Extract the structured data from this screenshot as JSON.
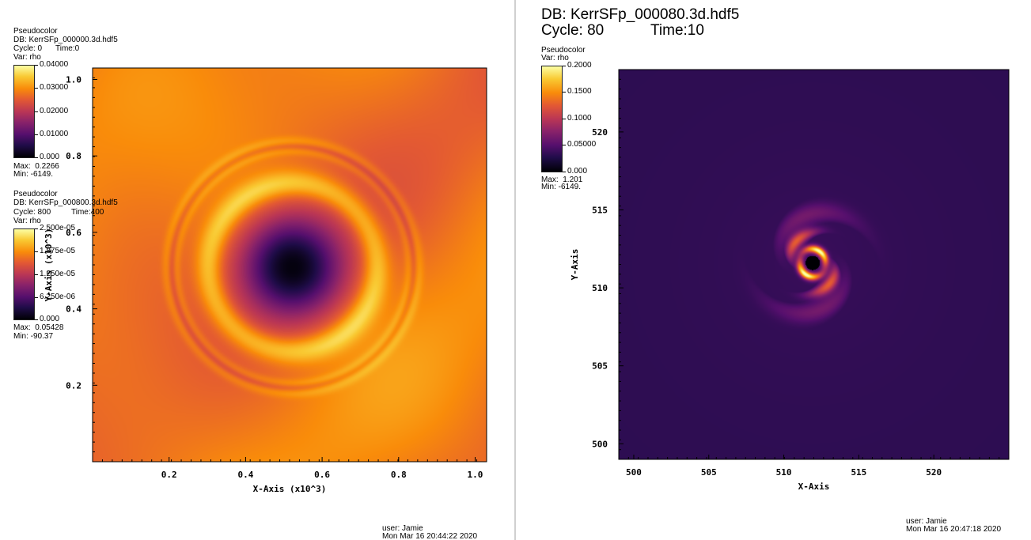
{
  "windows": [
    {
      "id": "left",
      "legends": [
        {
          "plot": "Pseudocolor",
          "db": "DB: KerrSFp_000000.3d.hdf5",
          "cycle": "Cycle: 0",
          "time": "Time:0",
          "var": "Var: rho",
          "ticks": [
            "0.04000",
            "0.03000",
            "0.02000",
            "0.01000",
            "0.000"
          ],
          "max": "Max:  0.2266",
          "min": "Min: -6149."
        },
        {
          "plot": "Pseudocolor",
          "db": "DB: KerrSFp_000800.3d.hdf5",
          "cycle": "Cycle: 800",
          "time": "Time:400",
          "var": "Var: rho",
          "ticks": [
            "2.500e-05",
            "1.875e-05",
            "1.250e-05",
            "6.250e-06",
            "0.000"
          ],
          "max": "Max:  0.05428",
          "min": "Min: -90.37"
        }
      ],
      "user": "user: Jamie",
      "date": "Mon Mar 16 20:44:22 2020"
    },
    {
      "id": "right",
      "header_db": "DB: KerrSFp_000080.3d.hdf5",
      "header_cycle": "Cycle: 80",
      "header_time": "Time:10",
      "legends": [
        {
          "plot": "Pseudocolor",
          "var": "Var: rho",
          "ticks": [
            "0.2000",
            "0.1500",
            "0.1000",
            "0.05000",
            "0.000"
          ],
          "max": "Max:  1.201",
          "min": "Min: -6149."
        }
      ],
      "user": "user: Jamie",
      "date": "Mon Mar 16 20:47:18 2020"
    }
  ],
  "chart_data": [
    {
      "type": "heatmap",
      "variable": "rho",
      "colormap": "inferno",
      "xlabel": "X-Axis (x10^3)",
      "ylabel": "Y-Axis (x10^3)",
      "xlim": [
        0.0,
        1.03
      ],
      "ylim": [
        0.0,
        1.03
      ],
      "x_ticks": [
        "0.2",
        "0.4",
        "0.6",
        "0.8",
        "1.0"
      ],
      "y_ticks": [
        "0.2",
        "0.4",
        "0.6",
        "0.8",
        "1.0"
      ],
      "feature": "dark central hole near (0.51, 0.51) with bright annular ring at radius about 0.2 and a faint outer ripple ring at radius about 0.33; background near 0.03",
      "colorbar_range": [
        0.0,
        0.04
      ]
    },
    {
      "type": "heatmap",
      "variable": "rho",
      "colormap": "inferno",
      "xlabel": "X-Axis",
      "ylabel": "Y-Axis",
      "xlim": [
        499.0,
        525.0
      ],
      "ylim": [
        499.0,
        524.0
      ],
      "x_ticks": [
        "500",
        "505",
        "510",
        "515",
        "520"
      ],
      "y_ticks": [
        "500",
        "505",
        "510",
        "515",
        "520"
      ],
      "feature": "compact bright spiral ring centered near (512, 512) with black core; low-valued purple background",
      "colorbar_range": [
        0.0,
        0.2
      ]
    }
  ]
}
